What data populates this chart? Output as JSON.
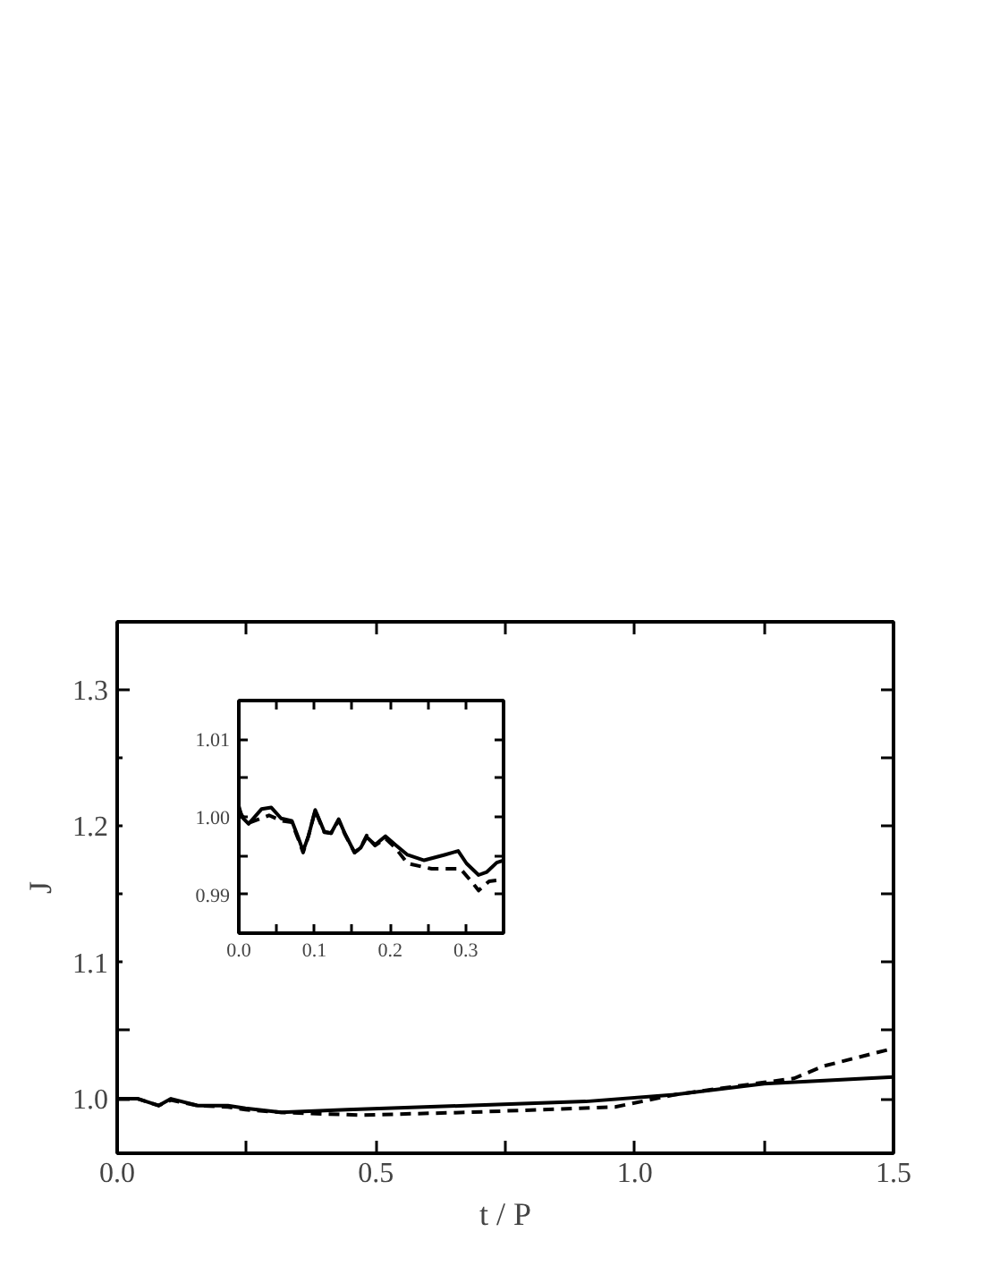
{
  "chart_data": [
    {
      "type": "line",
      "xlabel": "t / P",
      "ylabel": "J",
      "xlim": [
        0,
        1.5
      ],
      "ylim": [
        0.96,
        1.35
      ],
      "xticks": [
        {
          "value": 0,
          "label": "0.0"
        },
        {
          "value": 0.25,
          "label": null
        },
        {
          "value": 0.5,
          "label": "0.5"
        },
        {
          "value": 0.75,
          "label": null
        },
        {
          "value": 1,
          "label": "1.0"
        },
        {
          "value": 1.25,
          "label": null
        },
        {
          "value": 1.5,
          "label": "1.5"
        }
      ],
      "yticks": [
        {
          "value": 1,
          "label": "1.0"
        },
        {
          "value": 1.05,
          "label": null
        },
        {
          "value": 1.1,
          "label": "1.1"
        },
        {
          "value": 1.15,
          "label": null
        },
        {
          "value": 1.2,
          "label": "1.2"
        },
        {
          "value": 1.25,
          "label": null
        },
        {
          "value": 1.3,
          "label": "1.3"
        }
      ],
      "grid": false,
      "series": [
        {
          "color": "#000000",
          "line_style": "solid",
          "x": [
            0,
            0.04,
            0.08,
            0.104,
            0.156,
            0.214,
            0.248,
            0.317,
            0.444,
            0.674,
            0.905,
            1.077,
            1.25,
            1.5
          ],
          "values": [
            1.0,
            1.0,
            0.995,
            1.0,
            0.995,
            0.995,
            0.993,
            0.99,
            0.992,
            0.995,
            0.998,
            1.003,
            1.011,
            1.016
          ]
        },
        {
          "color": "#000000",
          "line_style": "dashed",
          "x": [
            0,
            0.04,
            0.08,
            0.104,
            0.156,
            0.214,
            0.248,
            0.317,
            0.467,
            0.674,
            0.962,
            1.077,
            1.25,
            1.308,
            1.365,
            1.5
          ],
          "values": [
            1.0,
            1.0,
            0.995,
            0.999,
            0.995,
            0.994,
            0.992,
            0.99,
            0.988,
            0.99,
            0.994,
            1.003,
            1.012,
            1.015,
            1.024,
            1.037
          ]
        }
      ]
    },
    {
      "type": "line",
      "xlim": [
        0,
        0.35
      ],
      "ylim": [
        0.985,
        1.015
      ],
      "xticks": [
        {
          "value": 0,
          "label": "0.0"
        },
        {
          "value": 0.05,
          "label": null
        },
        {
          "value": 0.1,
          "label": "0.1"
        },
        {
          "value": 0.15,
          "label": null
        },
        {
          "value": 0.2,
          "label": "0.2"
        },
        {
          "value": 0.25,
          "label": null
        },
        {
          "value": 0.3,
          "label": "0.3"
        }
      ],
      "yticks": [
        {
          "value": 0.99,
          "label": "0.99"
        },
        {
          "value": 0.995,
          "label": null
        },
        {
          "value": 1.0,
          "label": "1.00"
        },
        {
          "value": 1.005,
          "label": null
        },
        {
          "value": 1.01,
          "label": "1.01"
        }
      ],
      "grid": false,
      "series": [
        {
          "color": "#000000",
          "line_style": "solid",
          "x": [
            0,
            0.004,
            0.013,
            0.03,
            0.043,
            0.056,
            0.07,
            0.078,
            0.085,
            0.092,
            0.101,
            0.113,
            0.122,
            0.132,
            0.14,
            0.153,
            0.161,
            0.169,
            0.18,
            0.194,
            0.207,
            0.223,
            0.245,
            0.272,
            0.29,
            0.301,
            0.317,
            0.328,
            0.341,
            0.35
          ],
          "values": [
            1.0014,
            1.0,
            0.9991,
            1.001,
            1.0012,
            0.9998,
            0.9995,
            0.9975,
            0.9956,
            0.9975,
            1.0009,
            0.9981,
            0.9979,
            0.9997,
            0.9979,
            0.9954,
            0.996,
            0.9974,
            0.9964,
            0.9975,
            0.9964,
            0.9951,
            0.9944,
            0.9951,
            0.9956,
            0.994,
            0.9925,
            0.9929,
            0.9941,
            0.9944
          ]
        },
        {
          "color": "#000000",
          "line_style": "dashed",
          "x": [
            0,
            0.004,
            0.013,
            0.04,
            0.056,
            0.07,
            0.078,
            0.085,
            0.092,
            0.101,
            0.113,
            0.122,
            0.132,
            0.14,
            0.153,
            0.161,
            0.169,
            0.18,
            0.194,
            0.207,
            0.223,
            0.255,
            0.293,
            0.309,
            0.317,
            0.331,
            0.35
          ],
          "values": [
            1.001,
            1.0002,
            0.9992,
            1.0002,
            0.9995,
            0.9993,
            0.9973,
            0.9954,
            0.9975,
            1.0008,
            0.998,
            0.9979,
            0.9996,
            0.9978,
            0.9954,
            0.996,
            0.9976,
            0.9963,
            0.9972,
            0.996,
            0.994,
            0.9933,
            0.9933,
            0.9915,
            0.9905,
            0.9917,
            0.9919
          ]
        }
      ]
    }
  ]
}
